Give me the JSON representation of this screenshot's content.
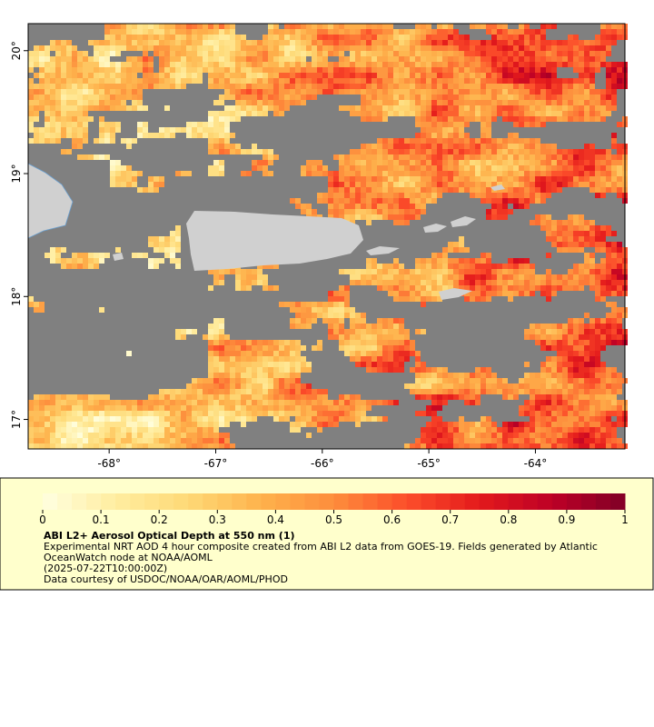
{
  "map": {
    "xlim": [
      -68.76,
      -63.16
    ],
    "ylim": [
      16.76,
      20.22
    ],
    "xticks": [
      {
        "value": -68,
        "label": "-68°"
      },
      {
        "value": -67,
        "label": "-67°"
      },
      {
        "value": -66,
        "label": "-66°"
      },
      {
        "value": -65,
        "label": "-65°"
      },
      {
        "value": -64,
        "label": "-64°"
      }
    ],
    "yticks": [
      {
        "value": 17,
        "label": "17°"
      },
      {
        "value": 18,
        "label": "18°"
      },
      {
        "value": 19,
        "label": "19°"
      },
      {
        "value": 20,
        "label": "20°"
      }
    ],
    "nodata_color": "#808080",
    "land_color": "#d0d0d0"
  },
  "colorbar": {
    "lim": [
      0,
      1
    ],
    "ticks": [
      0,
      0.1,
      0.2,
      0.3,
      0.4,
      0.5,
      0.6,
      0.7,
      0.8,
      0.9,
      1
    ],
    "colors": [
      "#ffffe0",
      "#ffeda0",
      "#fed976",
      "#feb24c",
      "#fd8d3c",
      "#fc4e2a",
      "#e31a1c",
      "#bd0026",
      "#800026"
    ]
  },
  "caption": {
    "title": "ABI L2+ Aerosol Optical Depth at 550 nm (1)",
    "lines": [
      "Experimental NRT AOD 4 hour composite created from ABI L2 data from GOES-19. Fields generated by Atlantic OceanWatch node at NOAA/AOML",
      "(2025-07-22T10:00:00Z)",
      "Data courtesy of USDOC/NOAA/OAR/AOML/PHOD"
    ]
  }
}
